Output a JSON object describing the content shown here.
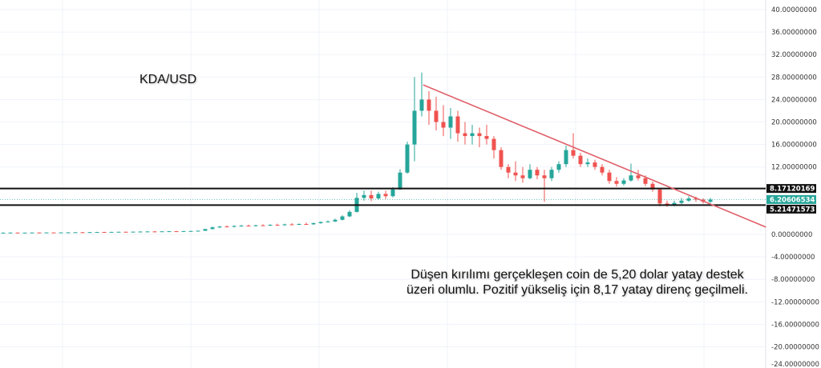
{
  "chart_data": {
    "type": "candlestick",
    "title": "KDA/USD",
    "ylim": [
      -24,
      40
    ],
    "y_ticks": [
      "40.00000000",
      "36.00000000",
      "32.00000000",
      "28.00000000",
      "24.00000000",
      "20.00000000",
      "16.00000000",
      "12.00000000",
      "0.00000000",
      "-4.00000000",
      "-8.00000000",
      "-12.00000000",
      "-16.00000000",
      "-20.00000000",
      "-24.00000000"
    ],
    "y_tick_values": [
      40,
      36,
      32,
      28,
      24,
      20,
      16,
      12,
      0,
      -4,
      -8,
      -12,
      -16,
      -20,
      -24
    ],
    "grid": true,
    "colors": {
      "up": "#26a69a",
      "down": "#ef5350",
      "trendline": "#e0606a",
      "level": "#111111",
      "price_tag": "#26a69a"
    },
    "ohlc": [
      [
        0.3,
        0.35,
        0.25,
        0.3
      ],
      [
        0.3,
        0.35,
        0.25,
        0.32
      ],
      [
        0.32,
        0.36,
        0.28,
        0.3
      ],
      [
        0.3,
        0.34,
        0.26,
        0.31
      ],
      [
        0.31,
        0.36,
        0.28,
        0.33
      ],
      [
        0.33,
        0.37,
        0.3,
        0.32
      ],
      [
        0.32,
        0.36,
        0.28,
        0.34
      ],
      [
        0.34,
        0.38,
        0.3,
        0.33
      ],
      [
        0.33,
        0.37,
        0.3,
        0.35
      ],
      [
        0.35,
        0.4,
        0.32,
        0.36
      ],
      [
        0.36,
        0.4,
        0.32,
        0.38
      ],
      [
        0.38,
        0.42,
        0.34,
        0.37
      ],
      [
        0.37,
        0.42,
        0.34,
        0.4
      ],
      [
        0.4,
        0.45,
        0.36,
        0.42
      ],
      [
        0.42,
        0.46,
        0.38,
        0.41
      ],
      [
        0.41,
        0.46,
        0.38,
        0.44
      ],
      [
        0.44,
        0.5,
        0.4,
        0.46
      ],
      [
        0.46,
        0.5,
        0.42,
        0.45
      ],
      [
        0.45,
        0.5,
        0.42,
        0.48
      ],
      [
        0.48,
        0.55,
        0.44,
        0.5
      ],
      [
        0.5,
        0.56,
        0.46,
        0.52
      ],
      [
        0.52,
        0.58,
        0.48,
        0.5
      ],
      [
        0.5,
        0.56,
        0.46,
        0.54
      ],
      [
        0.54,
        0.6,
        0.5,
        0.56
      ],
      [
        0.56,
        0.62,
        0.52,
        0.55
      ],
      [
        0.55,
        0.62,
        0.5,
        0.58
      ],
      [
        0.58,
        0.66,
        0.54,
        0.6
      ],
      [
        0.6,
        0.7,
        0.56,
        0.65
      ],
      [
        0.65,
        1.0,
        0.6,
        0.95
      ],
      [
        0.95,
        1.4,
        0.9,
        1.25
      ],
      [
        1.25,
        1.5,
        1.1,
        1.4
      ],
      [
        1.4,
        1.6,
        1.3,
        1.35
      ],
      [
        1.35,
        1.6,
        1.25,
        1.5
      ],
      [
        1.5,
        1.7,
        1.4,
        1.55
      ],
      [
        1.55,
        1.75,
        1.45,
        1.5
      ],
      [
        1.5,
        1.7,
        1.4,
        1.62
      ],
      [
        1.62,
        1.8,
        1.5,
        1.58
      ],
      [
        1.58,
        1.8,
        1.5,
        1.7
      ],
      [
        1.7,
        1.9,
        1.6,
        1.65
      ],
      [
        1.65,
        1.9,
        1.55,
        1.78
      ],
      [
        1.78,
        2.0,
        1.7,
        1.72
      ],
      [
        1.72,
        1.95,
        1.65,
        1.85
      ],
      [
        1.85,
        2.1,
        1.75,
        1.8
      ],
      [
        1.8,
        2.1,
        1.7,
        2.0
      ],
      [
        2.0,
        2.3,
        1.9,
        2.2
      ],
      [
        2.2,
        2.5,
        2.1,
        2.3
      ],
      [
        2.3,
        2.8,
        2.2,
        2.6
      ],
      [
        2.6,
        3.4,
        2.5,
        3.2
      ],
      [
        3.2,
        4.3,
        3.1,
        4.0
      ],
      [
        4.0,
        7.4,
        3.9,
        6.5
      ],
      [
        6.5,
        7.8,
        6.0,
        7.0
      ],
      [
        7.0,
        7.8,
        5.9,
        6.4
      ],
      [
        6.4,
        7.6,
        6.2,
        7.2
      ],
      [
        7.2,
        7.8,
        6.3,
        6.8
      ],
      [
        6.8,
        8.4,
        6.6,
        8.0
      ],
      [
        8.0,
        11.6,
        7.9,
        11.0
      ],
      [
        11.0,
        16.5,
        10.8,
        16.0
      ],
      [
        16.0,
        28.0,
        13.0,
        22.0
      ],
      [
        22.0,
        28.8,
        21.0,
        24.0
      ],
      [
        24.0,
        25.5,
        19.5,
        22.0
      ],
      [
        22.0,
        24.5,
        18.5,
        20.0
      ],
      [
        20.0,
        23.0,
        17.5,
        19.0
      ],
      [
        19.0,
        22.5,
        17.0,
        21.0
      ],
      [
        21.0,
        22.0,
        16.5,
        18.0
      ],
      [
        18.0,
        20.0,
        16.0,
        17.5
      ],
      [
        17.5,
        19.5,
        16.0,
        18.0
      ],
      [
        18.0,
        19.0,
        15.5,
        17.5
      ],
      [
        17.5,
        19.5,
        16.0,
        17.0
      ],
      [
        17.0,
        17.5,
        13.5,
        15.0
      ],
      [
        15.0,
        15.5,
        11.5,
        12.0
      ],
      [
        12.0,
        12.5,
        10.0,
        11.0
      ],
      [
        11.0,
        13.0,
        9.5,
        10.5
      ],
      [
        10.5,
        12.0,
        9.2,
        10.0
      ],
      [
        10.0,
        12.5,
        9.8,
        11.5
      ],
      [
        11.5,
        12.0,
        9.8,
        10.5
      ],
      [
        10.5,
        11.5,
        5.8,
        10.0
      ],
      [
        10.0,
        12.0,
        9.5,
        11.5
      ],
      [
        11.5,
        13.0,
        11.0,
        12.5
      ],
      [
        12.5,
        15.8,
        12.0,
        15.0
      ],
      [
        15.0,
        18.0,
        13.5,
        14.0
      ],
      [
        14.0,
        14.5,
        12.0,
        12.5
      ],
      [
        12.5,
        13.5,
        12.0,
        12.8
      ],
      [
        12.8,
        13.3,
        11.5,
        12.0
      ],
      [
        12.0,
        12.5,
        10.5,
        11.0
      ],
      [
        11.0,
        11.5,
        9.0,
        9.5
      ],
      [
        9.5,
        10.2,
        8.5,
        9.0
      ],
      [
        9.0,
        10.0,
        8.7,
        9.6
      ],
      [
        9.6,
        12.6,
        9.4,
        10.5
      ],
      [
        10.5,
        11.5,
        9.6,
        10.0
      ],
      [
        10.0,
        10.5,
        8.6,
        9.0
      ],
      [
        9.0,
        9.4,
        7.6,
        8.0
      ],
      [
        8.0,
        8.2,
        5.0,
        5.5
      ],
      [
        5.5,
        6.0,
        4.9,
        5.2
      ],
      [
        5.2,
        6.0,
        5.0,
        5.6
      ],
      [
        5.6,
        6.5,
        5.4,
        6.0
      ],
      [
        6.0,
        6.8,
        5.8,
        6.4
      ],
      [
        6.4,
        6.7,
        5.8,
        6.2
      ],
      [
        6.2,
        6.4,
        5.5,
        5.8
      ],
      [
        5.8,
        6.5,
        5.6,
        6.2
      ]
    ],
    "levels": [
      {
        "label": "8.17120169",
        "value": 8.17120169
      },
      {
        "label": "5.21471573",
        "value": 5.21471573
      }
    ],
    "last_price": {
      "label": "6.20606534",
      "value": 6.20606534
    },
    "trendline": {
      "from": {
        "bar": 58.2,
        "price": 26.6
      },
      "to": {
        "bar": 105.7,
        "price": 1.3
      }
    },
    "annotation": "Düşen kırılımı gerçekleşen coin de 5,20 dolar yatay destek üzeri olumlu. Pozitif yükseliş için 8,17 yatay direnç geçilmeli."
  }
}
